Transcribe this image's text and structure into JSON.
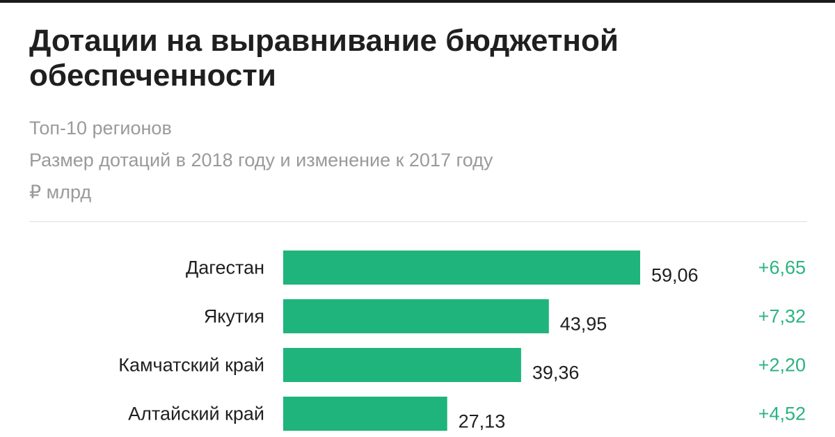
{
  "title": "Дотации на выравнивание бюджетной обеспеченности",
  "subtitle_lines": [
    "Топ-10 регионов",
    "Размер дотаций в 2018 году и изменение к 2017 году",
    "₽ млрд"
  ],
  "colors": {
    "bar": "#1fb47b",
    "change_text": "#2bb37f"
  },
  "chart_data": {
    "type": "bar",
    "orientation": "horizontal",
    "categories": [
      "Дагестан",
      "Якутия",
      "Камчатский край",
      "Алтайский край"
    ],
    "values": [
      59.06,
      43.95,
      39.36,
      27.13
    ],
    "value_labels": [
      "59,06",
      "43,95",
      "39,36",
      "27,13"
    ],
    "changes": [
      6.65,
      7.32,
      2.2,
      4.52
    ],
    "change_labels": [
      "+6,65",
      "+7,32",
      "+2,20",
      "+4,52"
    ],
    "grid": false,
    "legend": "none"
  }
}
